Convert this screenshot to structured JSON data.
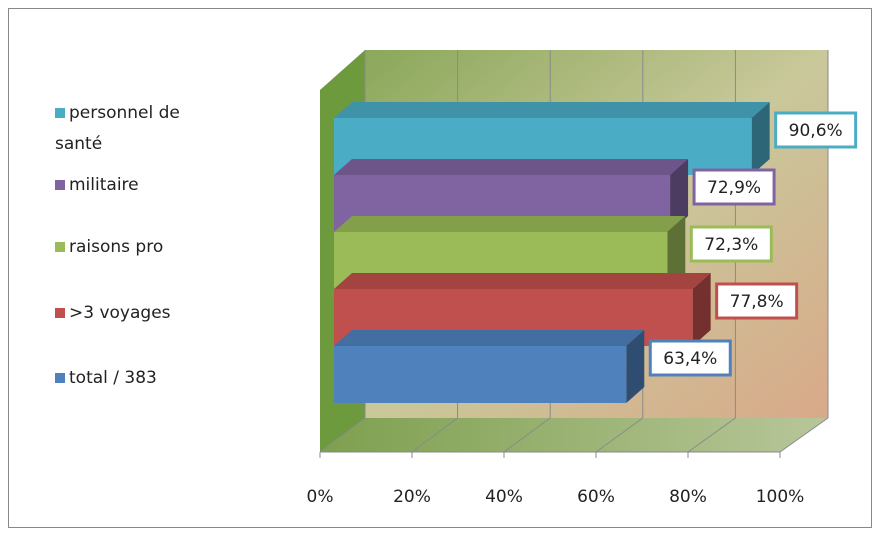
{
  "chart_data": {
    "type": "bar3d",
    "categories": [
      "personnel de santé",
      "militaire",
      "raisons pro",
      ">3 voyages",
      "total / 383"
    ],
    "values": [
      90.6,
      72.9,
      72.3,
      77.8,
      63.4
    ],
    "value_labels": [
      "90,6%",
      "72,9%",
      "72,3%",
      "77,8%",
      "63,4%"
    ],
    "colors": [
      "#4bacc6",
      "#8064a2",
      "#9bbb59",
      "#c0504d",
      "#4f81bd"
    ],
    "xlim": [
      0,
      100
    ],
    "xticks": [
      {
        "value": 0,
        "label": "0%"
      },
      {
        "value": 20,
        "label": "20%"
      },
      {
        "value": 40,
        "label": "40%"
      },
      {
        "value": 60,
        "label": "60%"
      },
      {
        "value": 80,
        "label": "80%"
      },
      {
        "value": 100,
        "label": "100%"
      }
    ],
    "grid": true
  }
}
